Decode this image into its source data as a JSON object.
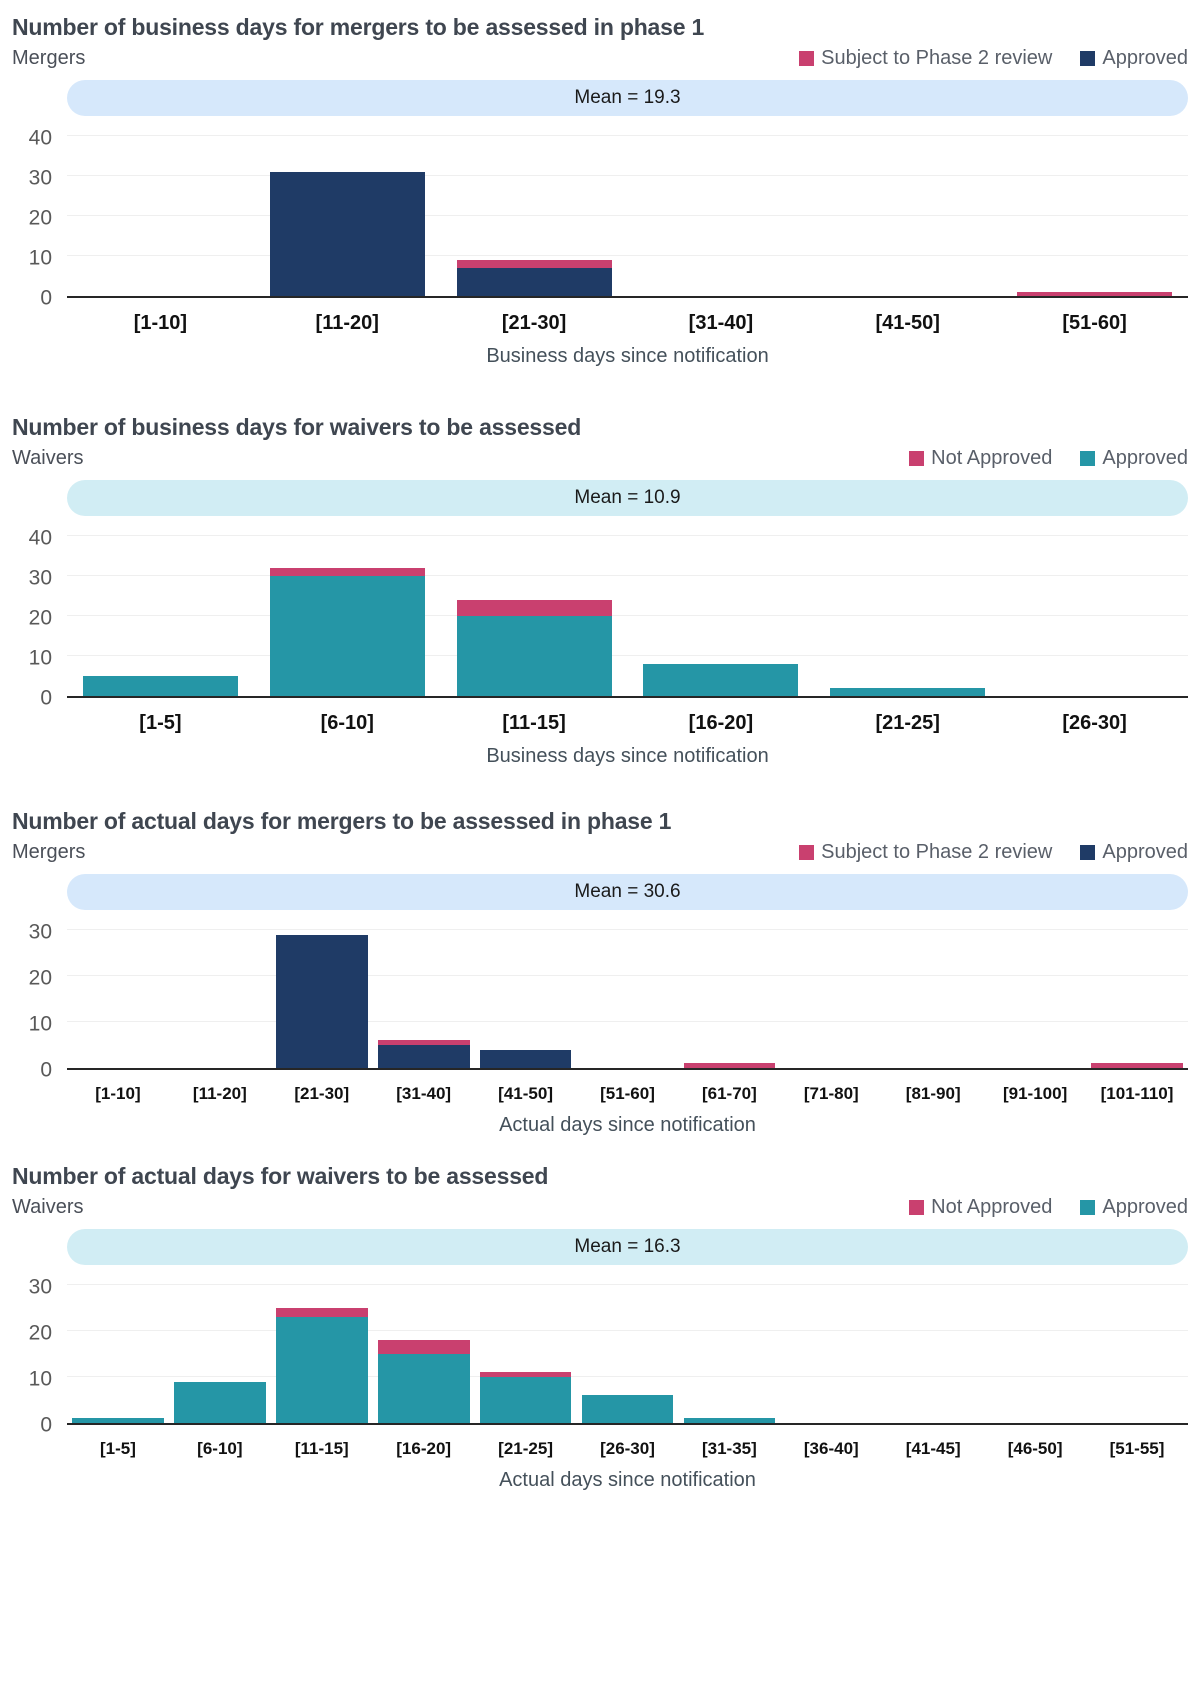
{
  "chart_data": [
    {
      "type": "bar",
      "title": "Number of business days for mergers to be assessed in phase 1",
      "subtitle": "Mergers",
      "mean_label": "Mean = 19.3",
      "mean_value": 19.3,
      "band_color": "#d6e8fb",
      "xlabel": "Business days since notification",
      "ylabel": "",
      "ylim": [
        0,
        40
      ],
      "yticks": [
        0,
        10,
        20,
        30,
        40
      ],
      "legend_position": "top-right",
      "grid": true,
      "categories": [
        "[1-10]",
        "[11-20]",
        "[21-30]",
        "[31-40]",
        "[41-50]",
        "[51-60]"
      ],
      "series": [
        {
          "name": "Approved",
          "color": "#1f3b66",
          "values": [
            0,
            31,
            7,
            0,
            0,
            0
          ]
        },
        {
          "name": "Subject to Phase 2 review",
          "color": "#c9406f",
          "values": [
            0,
            0,
            2,
            0,
            0,
            1
          ]
        }
      ],
      "legend": [
        {
          "label": "Subject to Phase 2 review",
          "color": "#c9406f"
        },
        {
          "label": "Approved",
          "color": "#1f3b66"
        }
      ]
    },
    {
      "type": "bar",
      "title": "Number of business days for waivers to be assessed",
      "subtitle": "Waivers",
      "mean_label": "Mean = 10.9",
      "mean_value": 10.9,
      "band_color": "#d1edf4",
      "xlabel": "Business days since notification",
      "ylabel": "",
      "ylim": [
        0,
        40
      ],
      "yticks": [
        0,
        10,
        20,
        30,
        40
      ],
      "legend_position": "top-right",
      "grid": true,
      "categories": [
        "[1-5]",
        "[6-10]",
        "[11-15]",
        "[16-20]",
        "[21-25]",
        "[26-30]"
      ],
      "series": [
        {
          "name": "Approved",
          "color": "#2596a6",
          "values": [
            5,
            30,
            20,
            8,
            2,
            0
          ]
        },
        {
          "name": "Not Approved",
          "color": "#c9406f",
          "values": [
            0,
            2,
            4,
            0,
            0,
            0
          ]
        }
      ],
      "legend": [
        {
          "label": "Not Approved",
          "color": "#c9406f"
        },
        {
          "label": "Approved",
          "color": "#2596a6"
        }
      ]
    },
    {
      "type": "bar",
      "title": "Number of actual days for mergers to be assessed in phase 1",
      "subtitle": "Mergers",
      "mean_label": "Mean = 30.6",
      "mean_value": 30.6,
      "band_color": "#d6e8fb",
      "xlabel": "Actual days since notification",
      "ylabel": "",
      "ylim": [
        0,
        30
      ],
      "yticks": [
        0,
        10,
        20,
        30
      ],
      "legend_position": "top-right",
      "grid": true,
      "categories": [
        "[1-10]",
        "[11-20]",
        "[21-30]",
        "[31-40]",
        "[41-50]",
        "[51-60]",
        "[61-70]",
        "[71-80]",
        "[81-90]",
        "[91-100]",
        "[101-110]"
      ],
      "series": [
        {
          "name": "Approved",
          "color": "#1f3b66",
          "values": [
            0,
            0,
            29,
            5,
            4,
            0,
            0,
            0,
            0,
            0,
            0
          ]
        },
        {
          "name": "Subject to Phase 2 review",
          "color": "#c9406f",
          "values": [
            0,
            0,
            0,
            1,
            0,
            0,
            1,
            0,
            0,
            0,
            1
          ]
        }
      ],
      "legend": [
        {
          "label": "Subject to Phase 2 review",
          "color": "#c9406f"
        },
        {
          "label": "Approved",
          "color": "#1f3b66"
        }
      ]
    },
    {
      "type": "bar",
      "title": "Number of actual days for waivers to be assessed",
      "subtitle": "Waivers",
      "mean_label": "Mean = 16.3",
      "mean_value": 16.3,
      "band_color": "#d1edf4",
      "xlabel": "Actual days since notification",
      "ylabel": "",
      "ylim": [
        0,
        30
      ],
      "yticks": [
        0,
        10,
        20,
        30
      ],
      "legend_position": "top-right",
      "grid": true,
      "categories": [
        "[1-5]",
        "[6-10]",
        "[11-15]",
        "[16-20]",
        "[21-25]",
        "[26-30]",
        "[31-35]",
        "[36-40]",
        "[41-45]",
        "[46-50]",
        "[51-55]"
      ],
      "series": [
        {
          "name": "Approved",
          "color": "#2596a6",
          "values": [
            1,
            9,
            23,
            15,
            10,
            6,
            1,
            0,
            0,
            0,
            0
          ]
        },
        {
          "name": "Not Approved",
          "color": "#c9406f",
          "values": [
            0,
            0,
            2,
            3,
            1,
            0,
            0,
            0,
            0,
            0,
            0
          ]
        }
      ],
      "legend": [
        {
          "label": "Not Approved",
          "color": "#c9406f"
        },
        {
          "label": "Approved",
          "color": "#2596a6"
        }
      ]
    }
  ]
}
